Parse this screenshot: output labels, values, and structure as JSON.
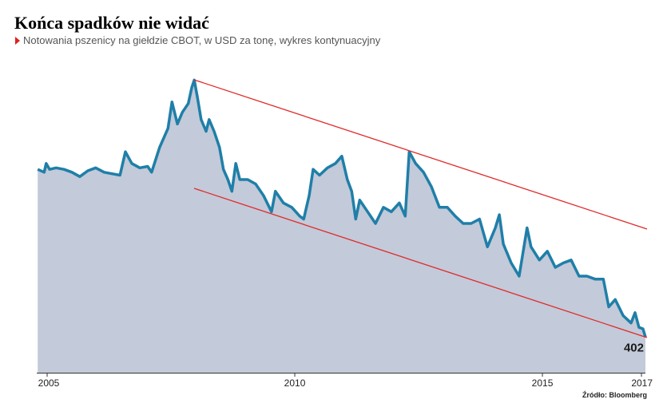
{
  "chart_data": {
    "type": "area",
    "title": "Końca spadków nie widać",
    "subtitle": "Notowania pszenicy na giełdzie CBOT, w USD za tonę, wykres kontynuacyjny",
    "source": "Źródło: Bloomberg",
    "line_color": "#1f7fa8",
    "fill_color": "#c3cad9",
    "label_last": true,
    "xlim": [
      2004.79,
      2017.08
    ],
    "xticks": [
      2005,
      2010,
      2015,
      2017
    ],
    "ylim": [
      280,
      1390
    ],
    "x": [
      2004.81,
      2004.94,
      2004.98,
      2005.05,
      2005.18,
      2005.34,
      2005.5,
      2005.66,
      2005.82,
      2005.98,
      2006.15,
      2006.31,
      2006.47,
      2006.58,
      2006.71,
      2006.87,
      2007.03,
      2007.11,
      2007.27,
      2007.44,
      2007.52,
      2007.63,
      2007.73,
      2007.85,
      2007.92,
      2007.97,
      2008.03,
      2008.11,
      2008.21,
      2008.27,
      2008.37,
      2008.48,
      2008.56,
      2008.65,
      2008.73,
      2008.81,
      2008.89,
      2009.05,
      2009.21,
      2009.37,
      2009.53,
      2009.61,
      2009.77,
      2009.94,
      2010.1,
      2010.18,
      2010.29,
      2010.37,
      2010.5,
      2010.66,
      2010.82,
      2010.95,
      2011.06,
      2011.15,
      2011.23,
      2011.31,
      2011.47,
      2011.63,
      2011.79,
      2011.95,
      2012.11,
      2012.23,
      2012.31,
      2012.44,
      2012.6,
      2012.76,
      2012.92,
      2013.08,
      2013.24,
      2013.4,
      2013.56,
      2013.73,
      2013.89,
      2014.05,
      2014.13,
      2014.21,
      2014.37,
      2014.53,
      2014.69,
      2014.77,
      2014.94,
      2015.1,
      2015.26,
      2015.42,
      2015.58,
      2015.74,
      2015.9,
      2016.06,
      2016.23,
      2016.34,
      2016.47,
      2016.63,
      2016.79,
      2016.87,
      2016.95,
      2017.03,
      2017.08
    ],
    "values": [
      975,
      965,
      995,
      975,
      980,
      975,
      965,
      950,
      970,
      980,
      965,
      960,
      955,
      1035,
      995,
      980,
      985,
      965,
      1050,
      1115,
      1205,
      1130,
      1170,
      1200,
      1255,
      1280,
      1225,
      1145,
      1105,
      1145,
      1105,
      1050,
      975,
      940,
      900,
      995,
      940,
      940,
      925,
      885,
      830,
      900,
      860,
      845,
      815,
      805,
      885,
      975,
      955,
      980,
      995,
      1020,
      940,
      900,
      805,
      870,
      830,
      790,
      845,
      830,
      860,
      815,
      1035,
      995,
      965,
      915,
      845,
      845,
      815,
      790,
      790,
      805,
      710,
      775,
      820,
      720,
      655,
      610,
      775,
      710,
      665,
      695,
      640,
      655,
      665,
      610,
      610,
      600,
      600,
      505,
      530,
      475,
      450,
      485,
      435,
      430,
      402
    ]
  }
}
